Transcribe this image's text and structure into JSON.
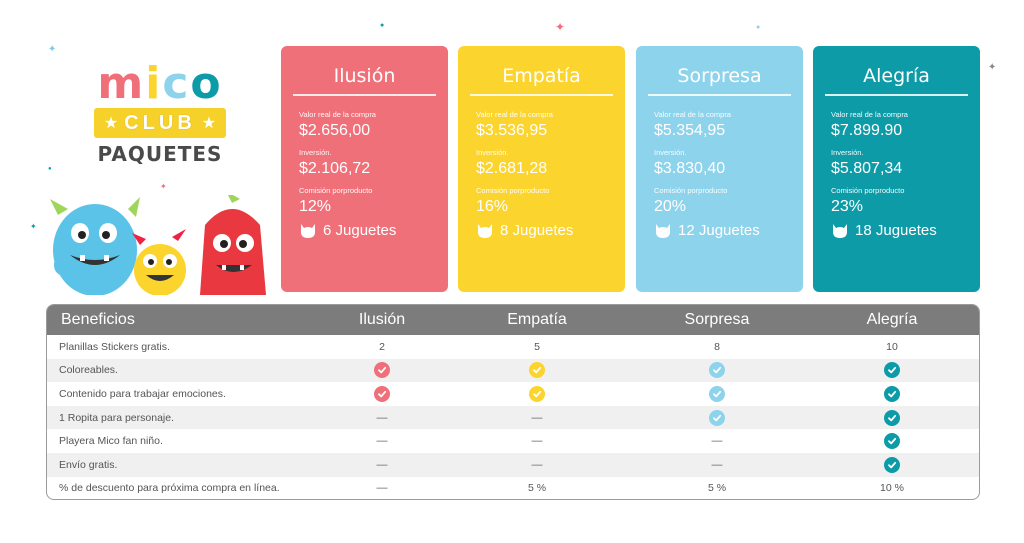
{
  "logo": {
    "word": "mico",
    "club": "CLUB",
    "subtitle": "PAQUETES"
  },
  "colors": {
    "ilusion": "#f0707a",
    "empatia": "#fcd42e",
    "sorpresa": "#8dd3ec",
    "alegria": "#0e9ba8",
    "header": "#7c7c7d"
  },
  "cards": [
    {
      "title": "Ilusión",
      "label_real": "Valor real de la compra",
      "real": "$2.656,00",
      "label_inv": "Inversión.",
      "inv": "$2.106,72",
      "label_com": "Comisión porproducto",
      "com": "12%",
      "toys": "6 Juguetes"
    },
    {
      "title": "Empatía",
      "label_real": "Valor real de la compra",
      "real": "$3.536,95",
      "label_inv": "Inversión.",
      "inv": "$2.681,28",
      "label_com": "Comisión porproducto",
      "com": "16%",
      "toys": "8 Juguetes"
    },
    {
      "title": "Sorpresa",
      "label_real": "Valor real de la compra",
      "real": "$5.354,95",
      "label_inv": "Inversión.",
      "inv": "$3.830,40",
      "label_com": "Comisión porproducto",
      "com": "20%",
      "toys": "12 Juguetes"
    },
    {
      "title": "Alegría",
      "label_real": "Valor real de la compra",
      "real": "$7.899.90",
      "label_inv": "Inversión.",
      "inv": "$5.807,34",
      "label_com": "Comisión porproducto",
      "com": "23%",
      "toys": "18 Juguetes"
    }
  ],
  "table": {
    "headers": [
      "Beneficios",
      "Ilusión",
      "Empatía",
      "Sorpresa",
      "Alegría"
    ],
    "rows": [
      {
        "label": "Planillas Stickers gratis.",
        "cells": [
          "2",
          "5",
          "8",
          "10"
        ]
      },
      {
        "label": "Coloreables.",
        "cells": [
          "check",
          "check",
          "check",
          "check"
        ]
      },
      {
        "label": "Contenido para trabajar emociones.",
        "cells": [
          "check",
          "check",
          "check",
          "check"
        ]
      },
      {
        "label": "1 Ropita para personaje.",
        "cells": [
          "—",
          "—",
          "check",
          "check"
        ]
      },
      {
        "label": "Playera Mico fan niño.",
        "cells": [
          "—",
          "—",
          "—",
          "check"
        ]
      },
      {
        "label": "Envío gratis.",
        "cells": [
          "—",
          "—",
          "—",
          "check"
        ]
      },
      {
        "label": "% de descuento para próxima compra en línea.",
        "cells": [
          "—",
          "5 %",
          "5 %",
          "10 %"
        ]
      }
    ]
  }
}
